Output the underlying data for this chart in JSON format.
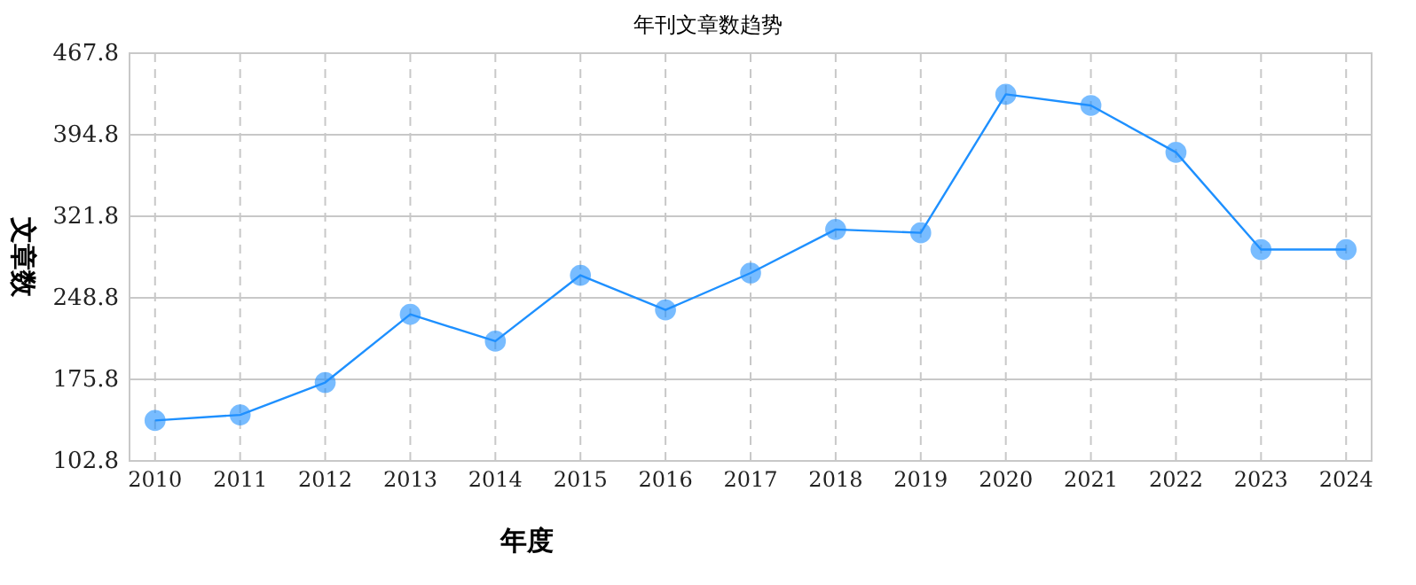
{
  "chart_data": {
    "type": "line",
    "title": "年刊文章数趋势",
    "xlabel": "年度",
    "ylabel": "文章数",
    "categories": [
      "2010",
      "2011",
      "2012",
      "2013",
      "2014",
      "2015",
      "2016",
      "2017",
      "2018",
      "2019",
      "2020",
      "2021",
      "2022",
      "2023",
      "2024"
    ],
    "series": [
      {
        "color": "#1e90ff",
        "values": [
          139,
          144,
          173,
          234,
          210,
          269,
          238,
          271,
          310,
          307,
          431,
          421,
          379,
          292,
          292
        ]
      }
    ],
    "ylim": [
      102.8,
      467.8
    ],
    "yticks": [
      102.8,
      175.8,
      248.8,
      321.8,
      394.8,
      467.8
    ],
    "grid": true,
    "marker": "circle",
    "line_style": "solid"
  }
}
